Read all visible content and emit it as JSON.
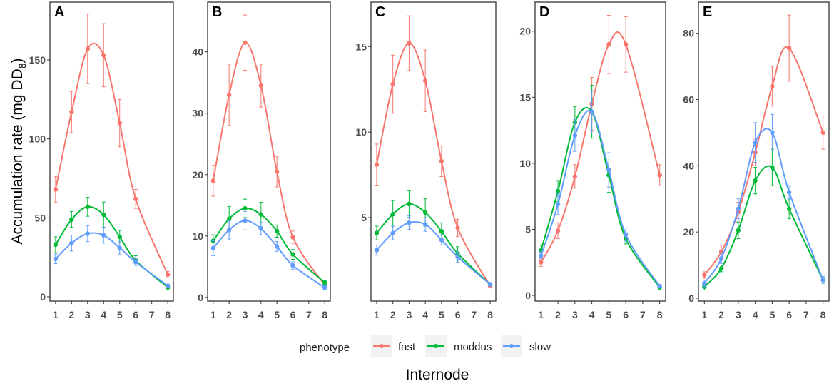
{
  "chart_data": {
    "type": "line",
    "xlabel": "Internode",
    "ylabel_parts": {
      "main": "Accumulation rate (mg DD",
      "sub": "8",
      "close": ")"
    },
    "x_ticks": [
      "1",
      "2",
      "3",
      "4",
      "5",
      "6",
      "7",
      "8"
    ],
    "x": [
      1,
      2,
      3,
      4,
      5,
      6,
      8
    ],
    "xlim": [
      0.65,
      8.35
    ],
    "legend": {
      "title": "phenotype",
      "position": "bottom",
      "entries": [
        "fast",
        "moddus",
        "slow"
      ]
    },
    "colors": {
      "fast": "#F8766D",
      "moddus": "#00BA38",
      "slow": "#619CFF"
    },
    "panels": [
      {
        "label": "A",
        "ylim": [
          -2.7,
          186.6
        ],
        "yticks": [
          0,
          50,
          100,
          150
        ],
        "series": [
          {
            "name": "fast",
            "values": [
              68,
              117,
              157,
              153,
              110,
              62,
              14
            ],
            "se": [
              8,
              13,
              22,
              20,
              15,
              6,
              2
            ]
          },
          {
            "name": "moddus",
            "values": [
              33,
              49,
              57,
              52,
              38,
              23,
              6
            ],
            "se": [
              5,
              5,
              6,
              8,
              4,
              3,
              1
            ]
          },
          {
            "name": "slow",
            "values": [
              24,
              34,
              40,
              39,
              31,
              22,
              7
            ],
            "se": [
              3,
              5,
              5,
              5,
              4,
              2,
              1
            ]
          }
        ]
      },
      {
        "label": "B",
        "ylim": [
          -0.6,
          48.1
        ],
        "yticks": [
          0,
          10,
          20,
          30,
          40
        ],
        "series": [
          {
            "name": "fast",
            "values": [
              19,
              33,
              41.5,
              34.5,
              20.5,
              9.8,
              2
            ],
            "se": [
              2.5,
              5,
              4.5,
              3.5,
              2.5,
              1,
              0.3
            ]
          },
          {
            "name": "moddus",
            "values": [
              9.2,
              12.8,
              14.5,
              13.5,
              10.8,
              7,
              2.4
            ],
            "se": [
              1,
              2,
              1.5,
              2,
              1,
              0.8,
              0.3
            ]
          },
          {
            "name": "slow",
            "values": [
              8,
              11,
              12.5,
              11.2,
              8.3,
              5.2,
              1.6
            ],
            "se": [
              1.2,
              1.5,
              1.5,
              1,
              0.8,
              0.6,
              0.3
            ]
          }
        ]
      },
      {
        "label": "C",
        "ylim": [
          0.12,
          17.6
        ],
        "yticks": [
          5,
          10,
          15
        ],
        "series": [
          {
            "name": "fast",
            "values": [
              8.1,
              12.8,
              15.2,
              13,
              8.3,
              4.4,
              1.0
            ],
            "se": [
              1.2,
              1.7,
              1.6,
              1.8,
              0.9,
              0.5,
              0.1
            ]
          },
          {
            "name": "moddus",
            "values": [
              4.1,
              5.2,
              5.8,
              5.3,
              4.2,
              2.9,
              1.1
            ],
            "se": [
              0.4,
              0.8,
              0.8,
              0.8,
              0.5,
              0.4,
              0.1
            ]
          },
          {
            "name": "slow",
            "values": [
              3.1,
              4.1,
              4.7,
              4.6,
              3.7,
              2.7,
              1.1
            ],
            "se": [
              0.3,
              0.4,
              0.4,
              0.4,
              0.3,
              0.3,
              0.1
            ]
          }
        ]
      },
      {
        "label": "D",
        "ylim": [
          -0.43,
          22.2
        ],
        "yticks": [
          0,
          5,
          10,
          15,
          20
        ],
        "series": [
          {
            "name": "fast",
            "values": [
              2.5,
              4.9,
              9,
              14.5,
              19,
              19,
              9.1
            ],
            "se": [
              0.3,
              0.6,
              0.9,
              2,
              2.2,
              2.1,
              0.8
            ]
          },
          {
            "name": "moddus",
            "values": [
              3.4,
              7.9,
              13.1,
              13.9,
              9.1,
              4.3,
              0.6
            ],
            "se": [
              0.4,
              0.8,
              1.2,
              2,
              1.3,
              0.4,
              0.1
            ]
          },
          {
            "name": "slow",
            "values": [
              3,
              6.9,
              12.1,
              13.9,
              9.5,
              4.6,
              0.7
            ],
            "se": [
              0.3,
              0.8,
              1.2,
              1.6,
              1.3,
              0.5,
              0.1
            ]
          }
        ]
      },
      {
        "label": "E",
        "ylim": [
          -0.86,
          89.4
        ],
        "yticks": [
          0,
          20,
          40,
          60,
          80
        ],
        "series": [
          {
            "name": "fast",
            "values": [
              7,
              14,
              26,
              44,
              64,
              75.5,
              50
            ],
            "se": [
              1,
              2,
              3,
              4,
              6,
              10,
              5
            ]
          },
          {
            "name": "moddus",
            "values": [
              3.5,
              9,
              20.5,
              35.5,
              39.5,
              27,
              5.5
            ],
            "se": [
              1,
              1,
              2.5,
              4,
              5.5,
              3,
              1
            ]
          },
          {
            "name": "slow",
            "values": [
              4.5,
              12,
              27,
              47,
              50,
              32,
              5.5
            ],
            "se": [
              1,
              1.5,
              3,
              6,
              5.5,
              2,
              1
            ]
          }
        ]
      }
    ]
  }
}
